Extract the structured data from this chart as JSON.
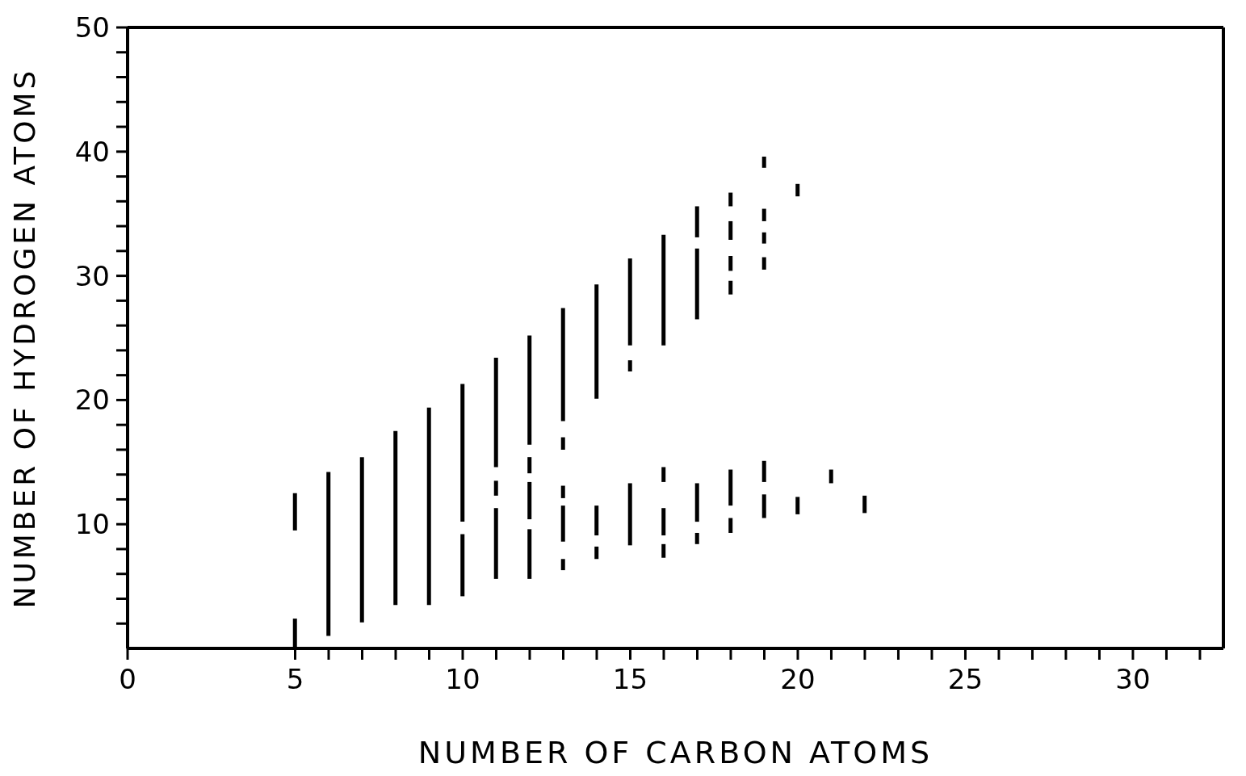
{
  "chart_data": {
    "type": "bar",
    "xlabel": "NUMBER OF CARBON ATOMS",
    "ylabel": "NUMBER OF HYDROGEN ATOMS",
    "xlim": [
      0,
      32.7
    ],
    "ylim": [
      0,
      50
    ],
    "xticks": [
      0,
      5,
      {
        "value": 6,
        "label": null
      },
      {
        "value": 7,
        "label": null
      },
      {
        "value": 8,
        "label": null
      },
      {
        "value": 9,
        "label": null
      },
      10,
      {
        "value": 11,
        "label": null
      },
      {
        "value": 12,
        "label": null
      },
      {
        "value": 13,
        "label": null
      },
      {
        "value": 14,
        "label": null
      },
      15,
      {
        "value": 16,
        "label": null
      },
      {
        "value": 17,
        "label": null
      },
      {
        "value": 18,
        "label": null
      },
      {
        "value": 19,
        "label": null
      },
      20,
      {
        "value": 21,
        "label": null
      },
      {
        "value": 22,
        "label": null
      },
      {
        "value": 23,
        "label": null
      },
      {
        "value": 24,
        "label": null
      },
      25,
      {
        "value": 26,
        "label": null
      },
      {
        "value": 27,
        "label": null
      },
      {
        "value": 28,
        "label": null
      },
      {
        "value": 29,
        "label": null
      },
      30,
      {
        "value": 31,
        "label": null
      },
      {
        "value": 32,
        "label": null
      }
    ],
    "yticks": [
      {
        "value": 2,
        "label": null
      },
      {
        "value": 4,
        "label": null
      },
      {
        "value": 6,
        "label": null
      },
      {
        "value": 8,
        "label": null
      },
      10,
      {
        "value": 12,
        "label": null
      },
      {
        "value": 14,
        "label": null
      },
      {
        "value": 16,
        "label": null
      },
      {
        "value": 18,
        "label": null
      },
      20,
      {
        "value": 22,
        "label": null
      },
      {
        "value": 24,
        "label": null
      },
      {
        "value": 26,
        "label": null
      },
      {
        "value": 28,
        "label": null
      },
      30,
      {
        "value": 32,
        "label": null
      },
      {
        "value": 34,
        "label": null
      },
      {
        "value": 36,
        "label": null
      },
      {
        "value": 38,
        "label": null
      },
      40,
      {
        "value": 42,
        "label": null
      },
      {
        "value": 44,
        "label": null
      },
      {
        "value": 46,
        "label": null
      },
      {
        "value": 48,
        "label": null
      },
      50
    ],
    "series": [
      {
        "color": "#000000",
        "x": [
          5,
          6,
          7,
          8,
          9,
          10,
          11,
          12,
          13,
          14,
          15,
          16,
          17,
          18,
          19,
          20,
          21,
          22
        ],
        "base": [
          9.5,
          1,
          2.1,
          3.5,
          3.5,
          10.2,
          14.6,
          16.4,
          18.3,
          20.1,
          24.4,
          24.4,
          33.1,
          35.6,
          38.7,
          36.4,
          13.3,
          10.9
        ],
        "values": [
          3,
          13.2,
          13.3,
          14,
          15.9,
          11.1,
          8.8,
          8.8,
          9.1,
          9.2,
          7,
          8.9,
          2.5,
          1.1,
          0.9,
          1,
          1.1,
          1.4
        ]
      },
      {
        "color": "#000000",
        "x": [
          5,
          10,
          11,
          12,
          13,
          14,
          15,
          16,
          17,
          18,
          19,
          20
        ],
        "base": [
          0,
          4.2,
          12.3,
          14.1,
          16,
          9.1,
          22.3,
          13.4,
          26.5,
          32.9,
          34.4,
          10.8
        ],
        "values": [
          2.4,
          5,
          1.2,
          1.3,
          1,
          2.4,
          0.9,
          1.2,
          5.7,
          1.5,
          1,
          1.4
        ]
      },
      {
        "color": "#000000",
        "x": [
          11,
          12,
          13,
          14,
          15,
          16,
          17,
          18,
          19
        ],
        "base": [
          5.6,
          10.4,
          12.1,
          7.2,
          8.3,
          9.1,
          10.2,
          30.4,
          32.6
        ],
        "values": [
          5.7,
          3,
          1,
          1,
          5,
          2.2,
          3.1,
          1.2,
          0.9
        ]
      },
      {
        "color": "#000000",
        "x": [
          12,
          13,
          16,
          17,
          18,
          19
        ],
        "base": [
          5.6,
          8.6,
          7.3,
          8.4,
          28.5,
          30.5
        ],
        "values": [
          4,
          2.9,
          1.1,
          0.9,
          1.1,
          1
        ]
      },
      {
        "color": "#000000",
        "x": [
          13,
          18,
          19
        ],
        "base": [
          6.3,
          11.5,
          13.4
        ],
        "values": [
          0.9,
          2.9,
          1.7
        ]
      },
      {
        "color": "#000000",
        "x": [
          18,
          19
        ],
        "base": [
          9.3,
          10.5
        ],
        "values": [
          1.2,
          1.9
        ]
      }
    ]
  }
}
